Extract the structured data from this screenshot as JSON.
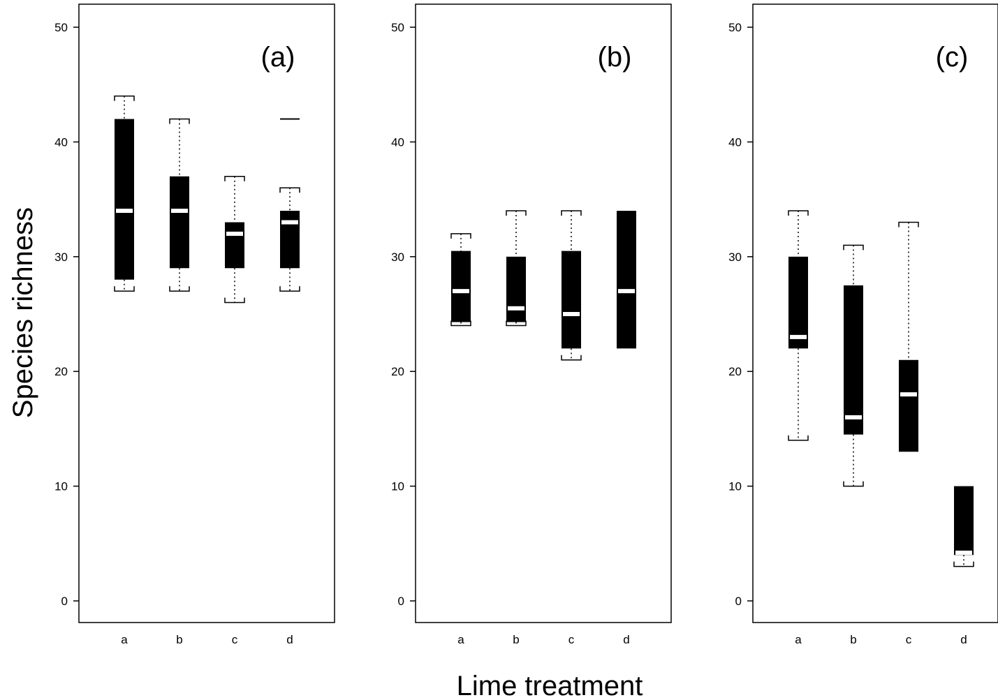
{
  "figure": {
    "ylabel": "Species richness",
    "xlabel": "Lime treatment"
  },
  "chart_data": [
    {
      "type": "boxplot",
      "panel_label": "(a)",
      "categories": [
        "a",
        "b",
        "c",
        "d"
      ],
      "yticks": [
        0,
        10,
        20,
        30,
        40,
        50
      ],
      "ylim": [
        -2,
        52
      ],
      "boxes": [
        {
          "category": "a",
          "whisker_low": 27,
          "q1": 28,
          "median": 34,
          "q3": 42,
          "whisker_high": 44
        },
        {
          "category": "b",
          "whisker_low": 27,
          "q1": 29,
          "median": 34,
          "q3": 37,
          "whisker_high": 42
        },
        {
          "category": "c",
          "whisker_low": 26,
          "q1": 29,
          "median": 32,
          "q3": 33,
          "whisker_high": 37
        },
        {
          "category": "d",
          "whisker_low": 27,
          "q1": 29,
          "median": 33,
          "q3": 34,
          "whisker_high": 36
        }
      ],
      "outliers": [
        {
          "category": "d",
          "value": 42
        }
      ]
    },
    {
      "type": "boxplot",
      "panel_label": "(b)",
      "categories": [
        "a",
        "b",
        "c",
        "d"
      ],
      "yticks": [
        0,
        10,
        20,
        30,
        40,
        50
      ],
      "ylim": [
        -2,
        52
      ],
      "boxes": [
        {
          "category": "a",
          "whisker_low": 24,
          "q1": 24.3,
          "median": 27,
          "q3": 30.5,
          "whisker_high": 32
        },
        {
          "category": "b",
          "whisker_low": 24,
          "q1": 24.3,
          "median": 25.5,
          "q3": 30,
          "whisker_high": 34
        },
        {
          "category": "c",
          "whisker_low": 21,
          "q1": 22,
          "median": 25,
          "q3": 30.5,
          "whisker_high": 34
        },
        {
          "category": "d",
          "whisker_low": 22,
          "q1": 22,
          "median": 27,
          "q3": 34,
          "whisker_high": 34
        }
      ],
      "outliers": []
    },
    {
      "type": "boxplot",
      "panel_label": "(c)",
      "categories": [
        "a",
        "b",
        "c",
        "d"
      ],
      "yticks": [
        0,
        10,
        20,
        30,
        40,
        50
      ],
      "ylim": [
        -2,
        52
      ],
      "boxes": [
        {
          "category": "a",
          "whisker_low": 14,
          "q1": 22,
          "median": 23,
          "q3": 30,
          "whisker_high": 34
        },
        {
          "category": "b",
          "whisker_low": 10,
          "q1": 14.5,
          "median": 16,
          "q3": 27.5,
          "whisker_high": 31
        },
        {
          "category": "c",
          "whisker_low": 13,
          "q1": 13,
          "median": 18,
          "q3": 21,
          "whisker_high": 33
        },
        {
          "category": "d",
          "whisker_low": 3,
          "q1": 4,
          "median": 4.2,
          "q3": 10,
          "whisker_high": 10
        }
      ],
      "outliers": []
    }
  ]
}
